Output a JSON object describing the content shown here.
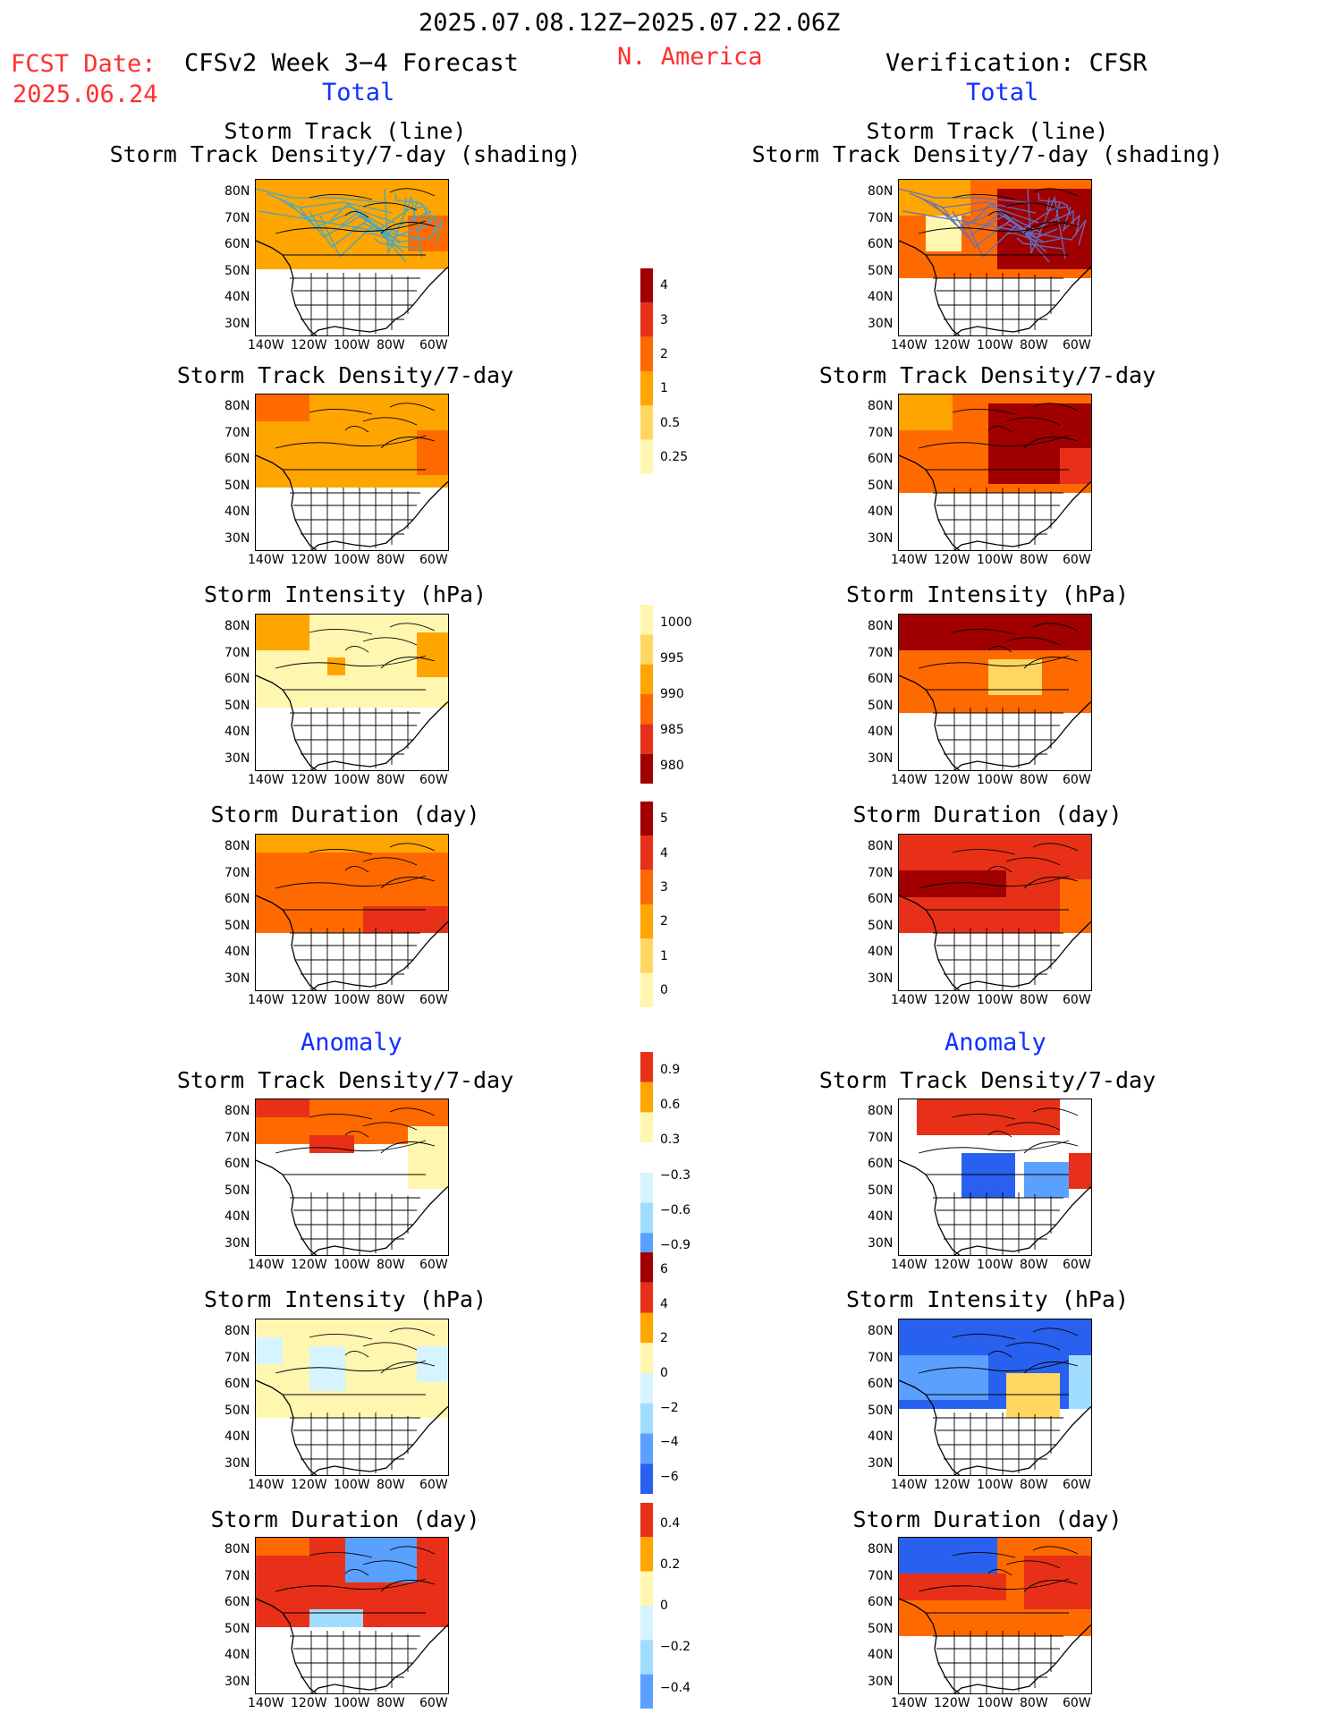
{
  "header": {
    "date_range": "2025.07.08.12Z−2025.07.22.06Z",
    "fcst_label": "FCST Date:",
    "fcst_date": "2025.06.24",
    "region": "N. America",
    "left_model": "CFSv2 Week 3−4 Forecast",
    "right_model": "Verification: CFSR",
    "total_left": "Total",
    "total_right": "Total",
    "anomaly_left": "Anomaly",
    "anomaly_right": "Anomaly"
  },
  "colors": {
    "title_red": "#ff3030",
    "section_blue": "#1030ff",
    "warm": [
      "#fff7b0",
      "#ffd760",
      "#ffa500",
      "#ff6a00",
      "#e83018",
      "#a00000"
    ],
    "cool": [
      "#d6f4ff",
      "#a0dcff",
      "#5aa0ff",
      "#2860f0",
      "#1040c8"
    ]
  },
  "axes": {
    "lat_ticks": [
      "80N",
      "70N",
      "60N",
      "50N",
      "40N",
      "30N"
    ],
    "lon_ticks": [
      "140W",
      "120W",
      "100W",
      "80W",
      "60W"
    ]
  },
  "panels": {
    "total": [
      {
        "title1": "Storm Track (line)",
        "title2": "Storm Track Density/7-day (shading)"
      },
      {
        "title1": "Storm Track Density/7-day",
        "title2": ""
      },
      {
        "title1": "Storm Intensity (hPa)",
        "title2": ""
      },
      {
        "title1": "Storm Duration (day)",
        "title2": ""
      }
    ],
    "anomaly": [
      {
        "title1": "Storm Track Density/7-day"
      },
      {
        "title1": "Storm Intensity (hPa)"
      },
      {
        "title1": "Storm Duration (day)"
      }
    ]
  },
  "colorbars": [
    {
      "name": "density-total",
      "labels": [
        "4",
        "3",
        "2",
        "1",
        "0.5",
        "0.25"
      ]
    },
    {
      "name": "intensity-total",
      "labels": [
        "1000",
        "995",
        "990",
        "985",
        "980"
      ]
    },
    {
      "name": "duration-total",
      "labels": [
        "5",
        "4",
        "3",
        "2",
        "1",
        "0"
      ]
    },
    {
      "name": "density-anomaly",
      "labels": [
        "0.9",
        "0.6",
        "0.3",
        "−0.3",
        "−0.6",
        "−0.9"
      ]
    },
    {
      "name": "intensity-anomaly",
      "labels": [
        "6",
        "4",
        "2",
        "0",
        "−2",
        "−4",
        "−6"
      ]
    },
    {
      "name": "duration-anomaly",
      "labels": [
        "0.4",
        "0.2",
        "0",
        "−0.2",
        "−0.4"
      ]
    }
  ]
}
